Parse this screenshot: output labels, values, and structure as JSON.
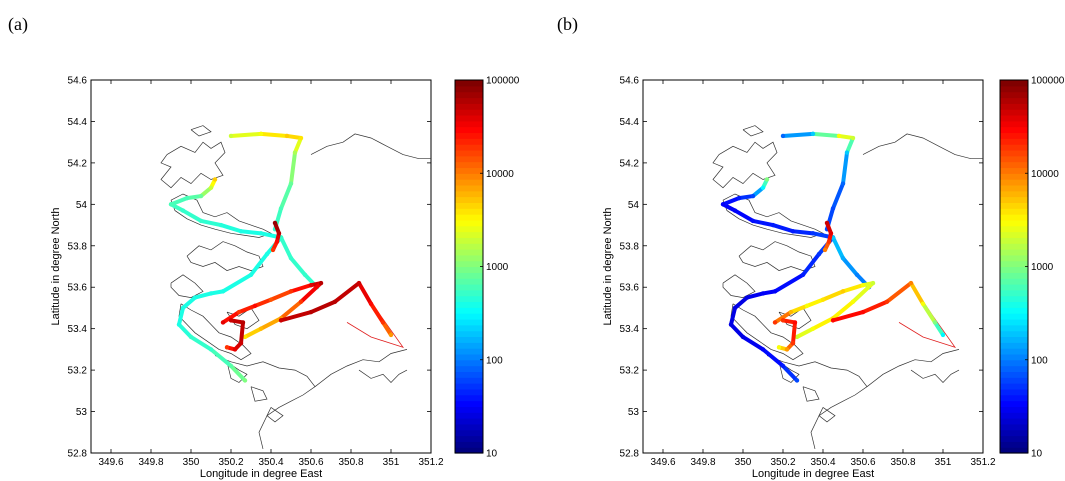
{
  "chart_data": [
    {
      "type": "scatter",
      "panel_label": "(a)",
      "xlabel": "Longitude in degree East",
      "ylabel": "Latitude in degree North",
      "xlim": [
        349.5,
        351.2
      ],
      "ylim": [
        52.8,
        54.6
      ],
      "xticks": [
        "349.6",
        "349.8",
        "350",
        "350.2",
        "350.4",
        "350.6",
        "350.8",
        "351",
        "351.2"
      ],
      "yticks": [
        "52.8",
        "53",
        "53.2",
        "53.4",
        "53.6",
        "53.8",
        "54",
        "54.2",
        "54.4",
        "54.6"
      ],
      "colorbar": {
        "scale": "log",
        "min": 10,
        "max": 100000,
        "colormap": "jet",
        "ticks": [
          "10",
          "100",
          "1000",
          "10000",
          "100000"
        ]
      },
      "series": [
        {
          "points": [
            [
              350.27,
              53.15
            ],
            [
              350.2,
              53.22
            ],
            [
              350.1,
              53.3
            ],
            [
              350.0,
              53.36
            ],
            [
              349.94,
              53.42
            ],
            [
              349.96,
              53.5
            ],
            [
              350.02,
              53.55
            ],
            [
              350.1,
              53.57
            ],
            [
              350.16,
              53.58
            ],
            [
              350.3,
              53.66
            ],
            [
              350.38,
              53.76
            ],
            [
              350.45,
              53.84
            ]
          ],
          "values": [
            1000,
            700,
            500,
            500,
            400,
            400,
            400,
            400,
            400,
            400,
            400,
            400
          ]
        },
        {
          "points": [
            [
              350.45,
              53.84
            ],
            [
              350.35,
              53.86
            ],
            [
              350.25,
              53.87
            ],
            [
              350.15,
              53.9
            ],
            [
              350.05,
              53.92
            ],
            [
              349.96,
              53.97
            ],
            [
              349.9,
              54.0
            ],
            [
              349.98,
              54.03
            ],
            [
              350.05,
              54.04
            ],
            [
              350.1,
              54.08
            ],
            [
              350.12,
              54.12
            ]
          ],
          "values": [
            400,
            400,
            400,
            450,
            500,
            500,
            600,
            600,
            800,
            2000,
            5000
          ]
        },
        {
          "points": [
            [
              350.2,
              54.33
            ],
            [
              350.35,
              54.34
            ],
            [
              350.48,
              54.33
            ],
            [
              350.55,
              54.32
            ],
            [
              350.52,
              54.25
            ],
            [
              350.5,
              54.1
            ],
            [
              350.45,
              53.98
            ],
            [
              350.42,
              53.88
            ]
          ],
          "values": [
            2000,
            3000,
            5000,
            4000,
            1500,
            800,
            600,
            500
          ]
        },
        {
          "points": [
            [
              350.45,
              53.84
            ],
            [
              350.5,
              53.74
            ],
            [
              350.57,
              53.66
            ],
            [
              350.63,
              53.6
            ]
          ],
          "values": [
            500,
            500,
            500,
            500
          ]
        },
        {
          "points": [
            [
              350.16,
              53.43
            ],
            [
              350.24,
              53.48
            ],
            [
              350.32,
              53.51
            ],
            [
              350.4,
              53.54
            ],
            [
              350.5,
              53.58
            ],
            [
              350.6,
              53.61
            ],
            [
              350.65,
              53.62
            ],
            [
              350.55,
              53.53
            ],
            [
              350.45,
              53.45
            ],
            [
              350.35,
              53.4
            ],
            [
              350.27,
              53.36
            ]
          ],
          "values": [
            40000,
            20000,
            30000,
            15000,
            20000,
            40000,
            60000,
            20000,
            8000,
            6000,
            4000
          ]
        },
        {
          "points": [
            [
              350.45,
              53.44
            ],
            [
              350.6,
              53.48
            ],
            [
              350.72,
              53.53
            ],
            [
              350.84,
              53.62
            ],
            [
              350.9,
              53.52
            ],
            [
              350.96,
              53.43
            ],
            [
              351.0,
              53.37
            ]
          ],
          "values": [
            50000,
            60000,
            60000,
            50000,
            30000,
            20000,
            8000
          ]
        },
        {
          "points": [
            [
              350.2,
              53.44
            ],
            [
              350.26,
              53.43
            ],
            [
              350.25,
              53.33
            ],
            [
              350.22,
              53.3
            ],
            [
              350.18,
              53.31
            ]
          ],
          "values": [
            50000,
            60000,
            50000,
            40000,
            20000
          ]
        },
        {
          "points": [
            [
              350.42,
              53.91
            ],
            [
              350.44,
              53.86
            ],
            [
              350.43,
              53.82
            ],
            [
              350.41,
              53.78
            ]
          ],
          "values": [
            80000,
            60000,
            30000,
            20000
          ]
        }
      ],
      "thin_track": [
        [
          350.84,
          53.62
        ],
        [
          350.95,
          53.46
        ],
        [
          351.06,
          53.31
        ],
        [
          350.9,
          53.36
        ],
        [
          350.78,
          53.43
        ]
      ]
    },
    {
      "type": "scatter",
      "panel_label": "(b)",
      "xlabel": "Longitude in degree East",
      "ylabel": "Latitude in degree North",
      "xlim": [
        349.5,
        351.2
      ],
      "ylim": [
        52.8,
        54.6
      ],
      "xticks": [
        "349.6",
        "349.8",
        "350",
        "350.2",
        "350.4",
        "350.6",
        "350.8",
        "351",
        "351.2"
      ],
      "yticks": [
        "52.8",
        "53",
        "53.2",
        "53.4",
        "53.6",
        "53.8",
        "54",
        "54.2",
        "54.4",
        "54.6"
      ],
      "colorbar": {
        "scale": "log",
        "min": 10,
        "max": 100000,
        "colormap": "jet",
        "ticks": [
          "10",
          "100",
          "1000",
          "10000",
          "100000"
        ]
      },
      "series": [
        {
          "points": [
            [
              350.27,
              53.15
            ],
            [
              350.2,
              53.22
            ],
            [
              350.1,
              53.3
            ],
            [
              350.0,
              53.36
            ],
            [
              349.94,
              53.42
            ],
            [
              349.96,
              53.5
            ],
            [
              350.02,
              53.55
            ],
            [
              350.1,
              53.57
            ],
            [
              350.16,
              53.58
            ],
            [
              350.3,
              53.66
            ],
            [
              350.38,
              53.76
            ],
            [
              350.45,
              53.84
            ]
          ],
          "values": [
            60,
            40,
            30,
            25,
            25,
            25,
            25,
            30,
            30,
            40,
            50,
            60
          ]
        },
        {
          "points": [
            [
              350.45,
              53.84
            ],
            [
              350.35,
              53.86
            ],
            [
              350.25,
              53.87
            ],
            [
              350.15,
              53.9
            ],
            [
              350.05,
              53.92
            ],
            [
              349.96,
              53.97
            ],
            [
              349.9,
              54.0
            ],
            [
              349.98,
              54.03
            ],
            [
              350.05,
              54.04
            ],
            [
              350.1,
              54.08
            ],
            [
              350.12,
              54.12
            ]
          ],
          "values": [
            60,
            50,
            40,
            40,
            35,
            30,
            30,
            40,
            60,
            300,
            1000
          ]
        },
        {
          "points": [
            [
              350.2,
              54.33
            ],
            [
              350.35,
              54.34
            ],
            [
              350.48,
              54.33
            ],
            [
              350.55,
              54.32
            ],
            [
              350.52,
              54.25
            ],
            [
              350.5,
              54.1
            ],
            [
              350.45,
              53.98
            ],
            [
              350.42,
              53.88
            ]
          ],
          "values": [
            80,
            200,
            3000,
            2000,
            200,
            80,
            60,
            60
          ]
        },
        {
          "points": [
            [
              350.45,
              53.84
            ],
            [
              350.5,
              53.74
            ],
            [
              350.57,
              53.66
            ],
            [
              350.63,
              53.6
            ]
          ],
          "values": [
            200,
            150,
            100,
            100
          ]
        },
        {
          "points": [
            [
              350.16,
              53.43
            ],
            [
              350.24,
              53.48
            ],
            [
              350.32,
              53.51
            ],
            [
              350.4,
              53.54
            ],
            [
              350.5,
              53.58
            ],
            [
              350.6,
              53.61
            ],
            [
              350.65,
              53.62
            ],
            [
              350.55,
              53.53
            ],
            [
              350.45,
              53.45
            ],
            [
              350.35,
              53.4
            ],
            [
              350.27,
              53.36
            ]
          ],
          "values": [
            20000,
            6000,
            3000,
            4000,
            5000,
            3000,
            2000,
            3000,
            4000,
            3000,
            2000
          ]
        },
        {
          "points": [
            [
              350.45,
              53.44
            ],
            [
              350.6,
              53.48
            ],
            [
              350.72,
              53.53
            ],
            [
              350.84,
              53.62
            ],
            [
              350.9,
              53.52
            ],
            [
              350.96,
              53.43
            ],
            [
              351.0,
              53.37
            ]
          ],
          "values": [
            30000,
            30000,
            20000,
            10000,
            3000,
            1000,
            300
          ]
        },
        {
          "points": [
            [
              350.2,
              53.44
            ],
            [
              350.26,
              53.43
            ],
            [
              350.25,
              53.33
            ],
            [
              350.22,
              53.3
            ],
            [
              350.18,
              53.31
            ]
          ],
          "values": [
            20000,
            30000,
            20000,
            8000,
            3000
          ]
        },
        {
          "points": [
            [
              350.42,
              53.91
            ],
            [
              350.44,
              53.86
            ],
            [
              350.43,
              53.82
            ],
            [
              350.41,
              53.78
            ]
          ],
          "values": [
            50000,
            40000,
            20000,
            10000
          ]
        }
      ],
      "thin_track": [
        [
          350.84,
          53.62
        ],
        [
          350.95,
          53.46
        ],
        [
          351.06,
          53.31
        ],
        [
          350.9,
          53.36
        ],
        [
          350.78,
          53.43
        ]
      ]
    }
  ]
}
